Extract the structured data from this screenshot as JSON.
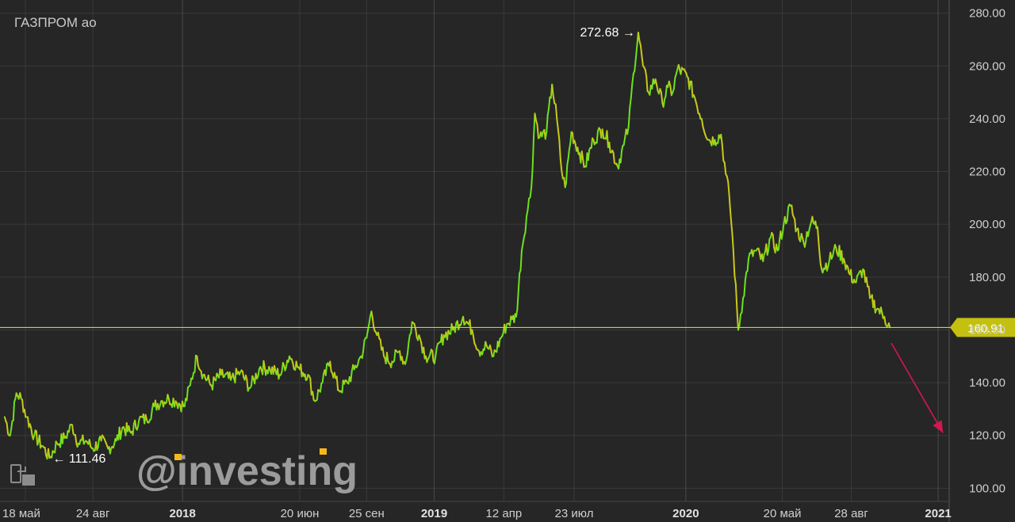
{
  "app": {
    "watermark": "@investing",
    "icons": [
      "copy-chart-icon"
    ]
  },
  "colors": {
    "background": "#262626",
    "grid": "#3a3a3a",
    "price_up": "#6ee01e",
    "price_down": "#c9c81a",
    "level_line": "#d8d510",
    "level_badge": "#c4c010",
    "arrow": "#d4174e",
    "axis_text": "#cfcfcf"
  },
  "chart_data": {
    "type": "line",
    "title": "ГАЗПРОМ ао",
    "xlabel": "",
    "ylabel": "",
    "ylim": [
      95,
      285
    ],
    "xlim": [
      "2017-04-17",
      "2021-01-17"
    ],
    "grid": true,
    "y_ticks": [
      "100.00",
      "120.00",
      "140.00",
      "160.00",
      "180.00",
      "200.00",
      "220.00",
      "240.00",
      "260.00",
      "280.00"
    ],
    "y_tick_values": [
      100,
      120,
      140,
      160,
      180,
      200,
      220,
      240,
      260,
      280
    ],
    "x_ticks": [
      {
        "label": "18 май",
        "date": "2017-05-18",
        "bold": false
      },
      {
        "label": "24 авг",
        "date": "2017-08-24",
        "bold": false
      },
      {
        "label": "2018",
        "date": "2018-01-01",
        "bold": true
      },
      {
        "label": "20 июн",
        "date": "2018-06-20",
        "bold": false
      },
      {
        "label": "25 сен",
        "date": "2018-09-25",
        "bold": false
      },
      {
        "label": "2019",
        "date": "2019-01-01",
        "bold": true
      },
      {
        "label": "12 апр",
        "date": "2019-04-12",
        "bold": false
      },
      {
        "label": "23 июл",
        "date": "2019-07-23",
        "bold": false
      },
      {
        "label": "2020",
        "date": "2020-01-01",
        "bold": true
      },
      {
        "label": "20 май",
        "date": "2020-05-20",
        "bold": false
      },
      {
        "label": "28 авг",
        "date": "2020-08-28",
        "bold": false
      },
      {
        "label": "2021",
        "date": "2021-01-01",
        "bold": true
      }
    ],
    "series": [
      {
        "name": "",
        "points": [
          [
            "2017-04-18",
            127
          ],
          [
            "2017-04-26",
            120
          ],
          [
            "2017-05-05",
            136
          ],
          [
            "2017-05-12",
            134
          ],
          [
            "2017-05-20",
            127
          ],
          [
            "2017-05-31",
            120
          ],
          [
            "2017-06-12",
            116
          ],
          [
            "2017-06-22",
            111.46
          ],
          [
            "2017-07-03",
            117
          ],
          [
            "2017-07-14",
            119
          ],
          [
            "2017-07-25",
            124
          ],
          [
            "2017-08-03",
            117
          ],
          [
            "2017-08-14",
            118
          ],
          [
            "2017-08-24",
            115
          ],
          [
            "2017-09-05",
            118
          ],
          [
            "2017-09-15",
            115
          ],
          [
            "2017-09-27",
            118
          ],
          [
            "2017-10-06",
            123
          ],
          [
            "2017-10-18",
            121
          ],
          [
            "2017-10-30",
            126
          ],
          [
            "2017-11-10",
            126
          ],
          [
            "2017-11-21",
            131
          ],
          [
            "2017-12-01",
            133
          ],
          [
            "2017-12-12",
            134
          ],
          [
            "2017-12-22",
            133
          ],
          [
            "2018-01-04",
            131
          ],
          [
            "2018-01-12",
            139
          ],
          [
            "2018-01-22",
            150
          ],
          [
            "2018-01-31",
            143
          ],
          [
            "2018-02-12",
            139
          ],
          [
            "2018-02-26",
            143
          ],
          [
            "2018-03-12",
            141
          ],
          [
            "2018-03-26",
            144
          ],
          [
            "2018-04-09",
            138
          ],
          [
            "2018-04-24",
            146
          ],
          [
            "2018-05-08",
            145
          ],
          [
            "2018-05-22",
            143
          ],
          [
            "2018-06-05",
            150
          ],
          [
            "2018-06-20",
            145
          ],
          [
            "2018-07-02",
            143
          ],
          [
            "2018-07-12",
            133
          ],
          [
            "2018-07-23",
            140
          ],
          [
            "2018-08-03",
            148
          ],
          [
            "2018-08-16",
            137
          ],
          [
            "2018-08-28",
            140
          ],
          [
            "2018-09-07",
            145
          ],
          [
            "2018-09-17",
            150
          ],
          [
            "2018-09-25",
            157
          ],
          [
            "2018-10-02",
            167
          ],
          [
            "2018-10-10",
            158
          ],
          [
            "2018-10-20",
            150
          ],
          [
            "2018-11-01",
            148
          ],
          [
            "2018-11-12",
            152
          ],
          [
            "2018-11-20",
            147
          ],
          [
            "2018-11-30",
            163
          ],
          [
            "2018-12-10",
            158
          ],
          [
            "2018-12-20",
            150
          ],
          [
            "2019-01-03",
            150
          ],
          [
            "2019-01-15",
            158
          ],
          [
            "2019-01-28",
            160
          ],
          [
            "2019-02-12",
            165
          ],
          [
            "2019-02-25",
            160
          ],
          [
            "2019-03-07",
            152
          ],
          [
            "2019-03-18",
            154
          ],
          [
            "2019-03-28",
            150
          ],
          [
            "2019-04-08",
            157
          ],
          [
            "2019-04-16",
            162
          ],
          [
            "2019-04-24",
            164
          ],
          [
            "2019-04-30",
            165
          ],
          [
            "2019-05-08",
            190
          ],
          [
            "2019-05-15",
            203
          ],
          [
            "2019-05-22",
            214
          ],
          [
            "2019-05-27",
            242
          ],
          [
            "2019-06-03",
            233
          ],
          [
            "2019-06-13",
            235
          ],
          [
            "2019-06-21",
            253
          ],
          [
            "2019-06-28",
            240
          ],
          [
            "2019-07-05",
            220
          ],
          [
            "2019-07-10",
            214
          ],
          [
            "2019-07-19",
            235
          ],
          [
            "2019-07-31",
            227
          ],
          [
            "2019-08-08",
            222
          ],
          [
            "2019-08-20",
            232
          ],
          [
            "2019-09-02",
            236
          ],
          [
            "2019-09-12",
            231
          ],
          [
            "2019-09-24",
            222
          ],
          [
            "2019-10-03",
            230
          ],
          [
            "2019-10-10",
            237
          ],
          [
            "2019-10-17",
            257
          ],
          [
            "2019-10-24",
            272.68
          ],
          [
            "2019-10-31",
            260
          ],
          [
            "2019-11-08",
            250
          ],
          [
            "2019-11-18",
            255
          ],
          [
            "2019-11-28",
            246
          ],
          [
            "2019-12-06",
            252
          ],
          [
            "2019-12-13",
            250
          ],
          [
            "2019-12-20",
            259
          ],
          [
            "2020-01-03",
            256
          ],
          [
            "2020-01-14",
            248
          ],
          [
            "2020-01-24",
            240
          ],
          [
            "2020-02-03",
            232
          ],
          [
            "2020-02-12",
            232
          ],
          [
            "2020-02-21",
            234
          ],
          [
            "2020-02-28",
            219
          ],
          [
            "2020-03-04",
            211
          ],
          [
            "2020-03-10",
            190
          ],
          [
            "2020-03-17",
            160
          ],
          [
            "2020-03-24",
            172
          ],
          [
            "2020-04-01",
            187
          ],
          [
            "2020-04-12",
            190
          ],
          [
            "2020-04-22",
            186
          ],
          [
            "2020-05-03",
            195
          ],
          [
            "2020-05-13",
            190
          ],
          [
            "2020-05-22",
            200
          ],
          [
            "2020-06-01",
            207
          ],
          [
            "2020-06-10",
            198
          ],
          [
            "2020-06-20",
            193
          ],
          [
            "2020-07-01",
            201
          ],
          [
            "2020-07-10",
            199
          ],
          [
            "2020-07-16",
            183
          ],
          [
            "2020-07-27",
            186
          ],
          [
            "2020-08-06",
            191
          ],
          [
            "2020-08-17",
            187
          ],
          [
            "2020-08-26",
            181
          ],
          [
            "2020-09-04",
            178
          ],
          [
            "2020-09-14",
            183
          ],
          [
            "2020-09-24",
            172
          ],
          [
            "2020-10-05",
            168
          ],
          [
            "2020-10-15",
            165
          ],
          [
            "2020-10-23",
            160.91
          ]
        ]
      }
    ],
    "annotations": [
      {
        "text": "272.68 →",
        "date": "2019-10-24",
        "value": 272.68,
        "type": "max"
      },
      {
        "text": "← 111.46",
        "date": "2017-06-22",
        "value": 111.46,
        "type": "min"
      }
    ],
    "level": {
      "value": 160.91,
      "label": "160.91"
    },
    "forecast_arrow": {
      "from": [
        "2020-10-25",
        155
      ],
      "to": [
        "2021-01-08",
        121
      ]
    }
  }
}
